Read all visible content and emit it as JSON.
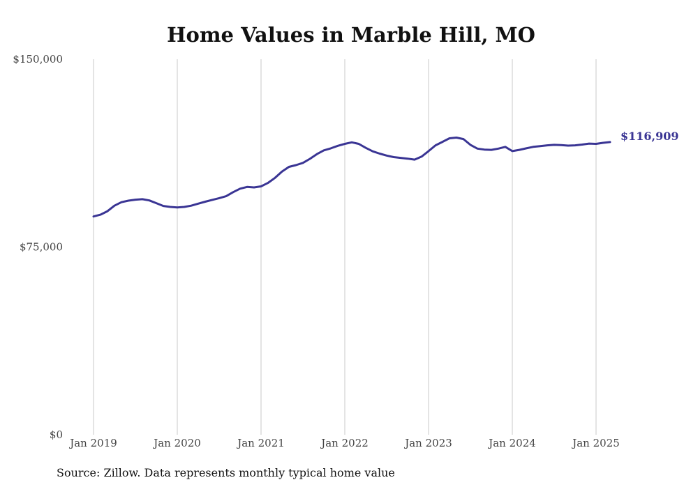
{
  "chart_data": {
    "type": "line",
    "title": "Home Values in Marble Hill, MO",
    "xlabel": "",
    "ylabel": "",
    "ylim": [
      0,
      150000
    ],
    "y_ticks": [
      {
        "value": 0,
        "label": "$0"
      },
      {
        "value": 75000,
        "label": "$75,000"
      },
      {
        "value": 150000,
        "label": "$150,000"
      }
    ],
    "x_ticks": [
      {
        "value": "2019-01",
        "label": "Jan 2019"
      },
      {
        "value": "2020-01",
        "label": "Jan 2020"
      },
      {
        "value": "2021-01",
        "label": "Jan 2021"
      },
      {
        "value": "2022-01",
        "label": "Jan 2022"
      },
      {
        "value": "2023-01",
        "label": "Jan 2023"
      },
      {
        "value": "2024-01",
        "label": "Jan 2024"
      },
      {
        "value": "2025-01",
        "label": "Jan 2025"
      }
    ],
    "grid": "vertical lines at x ticks",
    "line_color": "#3a3594",
    "end_label": "$116,909",
    "series": [
      {
        "x": [
          "2019-01",
          "2019-02",
          "2019-03",
          "2019-04",
          "2019-05",
          "2019-06",
          "2019-07",
          "2019-08",
          "2019-09",
          "2019-10",
          "2019-11",
          "2019-12",
          "2020-01",
          "2020-02",
          "2020-03",
          "2020-04",
          "2020-05",
          "2020-06",
          "2020-07",
          "2020-08",
          "2020-09",
          "2020-10",
          "2020-11",
          "2020-12",
          "2021-01",
          "2021-02",
          "2021-03",
          "2021-04",
          "2021-05",
          "2021-06",
          "2021-07",
          "2021-08",
          "2021-09",
          "2021-10",
          "2021-11",
          "2021-12",
          "2022-01",
          "2022-02",
          "2022-03",
          "2022-04",
          "2022-05",
          "2022-06",
          "2022-07",
          "2022-08",
          "2022-09",
          "2022-10",
          "2022-11",
          "2022-12",
          "2023-01",
          "2023-02",
          "2023-03",
          "2023-04",
          "2023-05",
          "2023-06",
          "2023-07",
          "2023-08",
          "2023-09",
          "2023-10",
          "2023-11",
          "2023-12",
          "2024-01",
          "2024-02",
          "2024-03",
          "2024-04",
          "2024-05",
          "2024-06",
          "2024-07",
          "2024-08",
          "2024-09",
          "2024-10",
          "2024-11",
          "2024-12",
          "2025-01",
          "2025-02",
          "2025-03"
        ],
        "values": [
          87200,
          87900,
          89300,
          91500,
          92900,
          93500,
          93900,
          94100,
          93600,
          92500,
          91400,
          91000,
          90800,
          91000,
          91500,
          92300,
          93100,
          93800,
          94500,
          95300,
          96900,
          98300,
          99000,
          98800,
          99200,
          100600,
          102600,
          105100,
          107000,
          107700,
          108600,
          110200,
          112100,
          113600,
          114400,
          115400,
          116200,
          116800,
          116200,
          114600,
          113200,
          112300,
          111500,
          110900,
          110600,
          110300,
          109900,
          111100,
          113300,
          115600,
          117000,
          118400,
          118700,
          118100,
          115800,
          114300,
          113900,
          113800,
          114300,
          115000,
          115900,
          116300,
          116800,
          117200,
          117100,
          116800,
          116700,
          116900,
          117300,
          118100,
          118900,
          119600,
          116909,
          116909,
          116909
        ]
      }
    ]
  },
  "footer": {
    "source": "Source: Zillow. Data represents monthly typical home value"
  }
}
